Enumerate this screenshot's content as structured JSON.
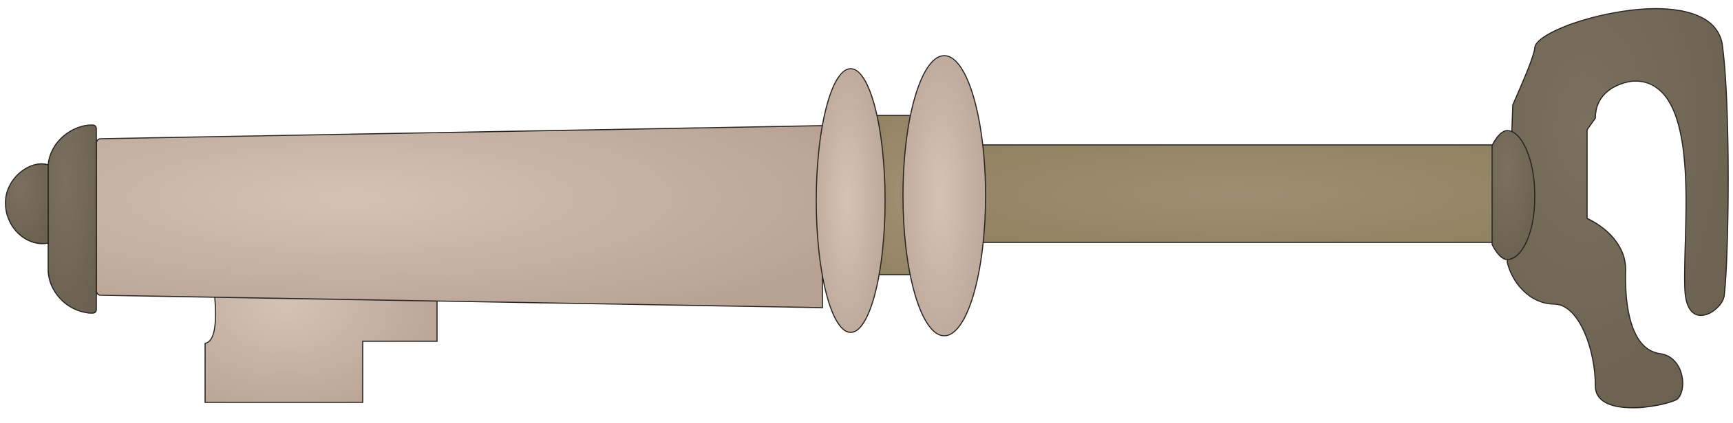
{
  "illustration": {
    "subject": "",
    "colors": {
      "background": "#ffffff",
      "outline": "#2a2622",
      "pink_light": "#d3c3b6",
      "pink_mid": "#c4afa1",
      "pink_dark": "#b8a294",
      "olive_light": "#9e8f72",
      "olive_dark": "#8f8260",
      "taupe_light": "#7a7060",
      "taupe_dark": "#6b6151"
    }
  }
}
